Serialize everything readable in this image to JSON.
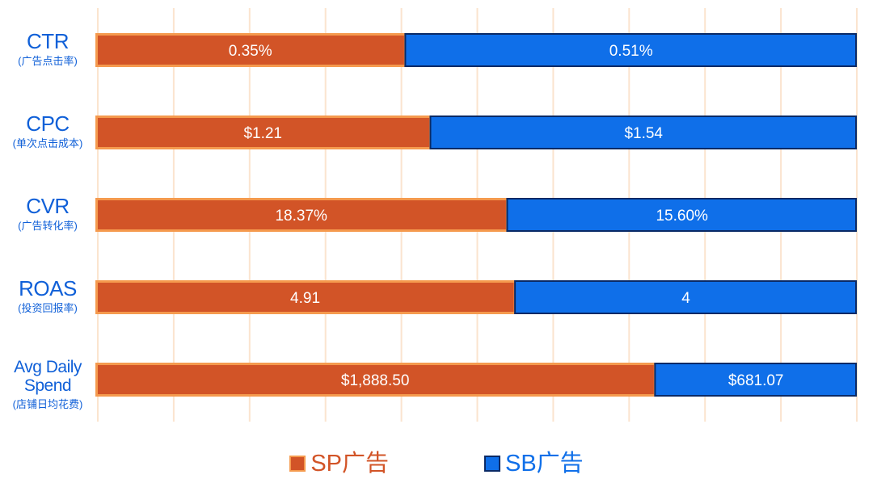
{
  "chart_data": {
    "type": "bar",
    "orientation": "horizontal",
    "stacked": true,
    "normalized": true,
    "categories": [
      {
        "name": "CTR",
        "subtitle": "(广告点击率)"
      },
      {
        "name": "CPC",
        "subtitle": "(单次点击成本)"
      },
      {
        "name": "CVR",
        "subtitle": "(广告转化率)"
      },
      {
        "name": "ROAS",
        "subtitle": "(投资回报率)"
      },
      {
        "name": "Avg Daily Spend",
        "subtitle": "(店铺日均花费)"
      }
    ],
    "series": [
      {
        "name": "SP广告",
        "values": [
          0.35,
          1.21,
          18.37,
          4.91,
          1888.5
        ],
        "labels": [
          "0.35%",
          "$1.21",
          "18.37%",
          "4.91",
          "$1,888.50"
        ]
      },
      {
        "name": "SB广告",
        "values": [
          0.51,
          1.54,
          15.6,
          4,
          681.07
        ],
        "labels": [
          "0.51%",
          "$1.54",
          "15.60%",
          "4",
          "$681.07"
        ]
      }
    ],
    "gridlines": true,
    "legend_position": "bottom",
    "colors": {
      "sp_fill": "#d25427",
      "sp_edge": "#f59a4e",
      "sb_fill": "#0f6fe9",
      "sb_edge": "#0a2a66",
      "grid": "#fbe4cf",
      "label_text": "#1060d8"
    }
  }
}
